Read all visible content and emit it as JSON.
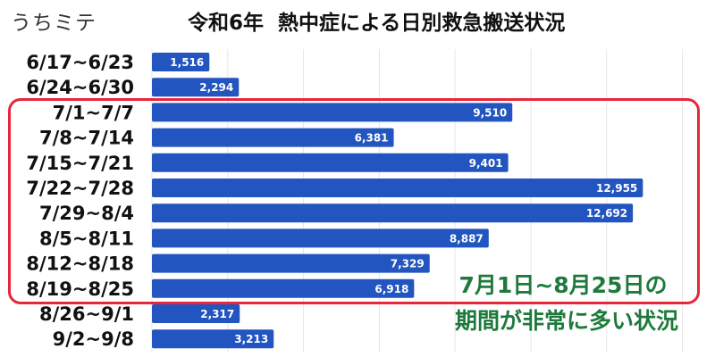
{
  "brand": "うちミテ",
  "chart_data": {
    "type": "bar",
    "orientation": "horizontal",
    "title": "令和6年  熱中症による日別救急搬送状況",
    "categories": [
      "6/17~6/23",
      "6/24~6/30",
      "7/1~7/7",
      "7/8~7/14",
      "7/15~7/21",
      "7/22~7/28",
      "7/29~8/4",
      "8/5~8/11",
      "8/12~8/18",
      "8/19~8/25",
      "8/26~9/1",
      "9/2~9/8"
    ],
    "values": [
      1516,
      2294,
      9510,
      6381,
      9401,
      12955,
      12692,
      8887,
      7329,
      6918,
      2317,
      3213
    ],
    "value_labels": [
      "1,516",
      "2,294",
      "9,510",
      "6,381",
      "9,401",
      "12,955",
      "12,692",
      "8,887",
      "7,329",
      "6,918",
      "2,317",
      "3,213"
    ],
    "xlim": [
      0,
      14000
    ],
    "grid": true,
    "bar_color": "#2255bf",
    "highlight_color": "#e8263a",
    "annotation_color": "#1e7a3c",
    "highlight_range": [
      "7/1~7/7",
      "8/19~8/25"
    ]
  },
  "annotation": {
    "line1": "7月1日~8月25日の",
    "line2": "期間が非常に多い状況"
  }
}
